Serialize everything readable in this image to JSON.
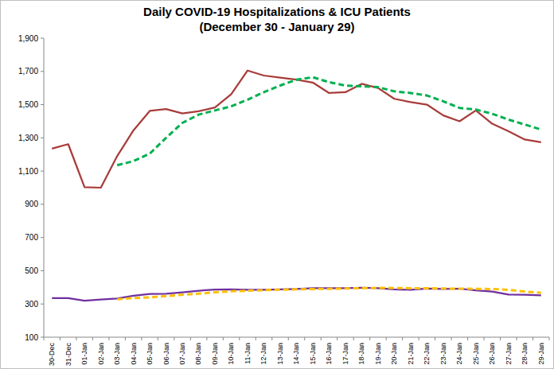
{
  "chart_data": {
    "type": "line",
    "title": "Daily COVID-19 Hospitalizations & ICU Patients",
    "subtitle": "(December 30 - January 29)",
    "categories": [
      "30-Dec",
      "31-Dec",
      "01-Jan",
      "02-Jan",
      "03-Jan",
      "04-Jan",
      "05-Jan",
      "06-Jan",
      "07-Jan",
      "08-Jan",
      "09-Jan",
      "10-Jan",
      "11-Jan",
      "12-Jan",
      "13-Jan",
      "14-Jan",
      "15-Jan",
      "16-Jan",
      "17-Jan",
      "18-Jan",
      "19-Jan",
      "20-Jan",
      "21-Jan",
      "22-Jan",
      "23-Jan",
      "24-Jan",
      "25-Jan",
      "26-Jan",
      "27-Jan",
      "28-Jan",
      "29-Jan"
    ],
    "series": [
      {
        "color": "#a83c3a",
        "line_style": "solid",
        "values": [
          1235,
          1262,
          1003,
          1000,
          1190,
          1345,
          1462,
          1473,
          1447,
          1460,
          1483,
          1563,
          1705,
          1675,
          1663,
          1650,
          1633,
          1570,
          1575,
          1625,
          1600,
          1535,
          1515,
          1500,
          1435,
          1400,
          1465,
          1385,
          1340,
          1290,
          1273
        ]
      },
      {
        "color": "#00b050",
        "line_style": "dashed",
        "values": [
          null,
          null,
          null,
          null,
          1135,
          1160,
          1205,
          1300,
          1390,
          1440,
          1465,
          1490,
          1530,
          1575,
          1615,
          1650,
          1665,
          1635,
          1615,
          1610,
          1605,
          1580,
          1570,
          1555,
          1520,
          1480,
          1470,
          1445,
          1410,
          1380,
          1350
        ]
      },
      {
        "color": "#7030a0",
        "line_style": "solid",
        "values": [
          335,
          335,
          320,
          327,
          333,
          350,
          360,
          362,
          370,
          380,
          387,
          388,
          385,
          385,
          388,
          390,
          395,
          395,
          395,
          398,
          395,
          388,
          385,
          393,
          390,
          392,
          382,
          375,
          357,
          355,
          352
        ]
      },
      {
        "color": "#ffc000",
        "line_style": "dashed",
        "values": [
          null,
          null,
          null,
          null,
          328,
          335,
          340,
          348,
          355,
          362,
          370,
          376,
          380,
          383,
          386,
          388,
          390,
          391,
          393,
          395,
          397,
          396,
          395,
          395,
          393,
          392,
          391,
          390,
          385,
          375,
          367
        ]
      }
    ],
    "ylim": [
      100,
      1900
    ],
    "yticks": [
      100,
      300,
      500,
      700,
      900,
      {
        "value": 1100,
        "label": "1,100"
      },
      {
        "value": 1300,
        "label": "1,300"
      },
      {
        "value": 1500,
        "label": "1,500"
      },
      {
        "value": 1700,
        "label": "1,700"
      },
      {
        "value": 1900,
        "label": "1,900"
      }
    ],
    "grid": false
  }
}
